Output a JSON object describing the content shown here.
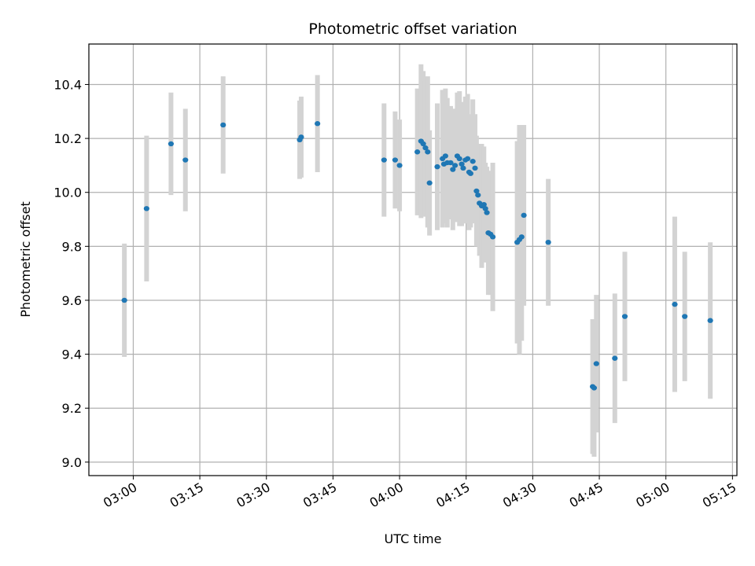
{
  "chart_data": {
    "type": "scatter",
    "title": "Photometric offset variation",
    "xlabel": "UTC time",
    "ylabel": "Photometric offset",
    "x_ticks": [
      "03:00",
      "03:15",
      "03:30",
      "03:45",
      "04:00",
      "04:15",
      "04:30",
      "04:45",
      "05:00",
      "05:15"
    ],
    "y_ticks": [
      "9.0",
      "9.2",
      "9.4",
      "9.6",
      "9.8",
      "10.0",
      "10.2",
      "10.4"
    ],
    "xlim": [
      "02:50",
      "05:16"
    ],
    "ylim": [
      8.95,
      10.55
    ],
    "grid": true,
    "colors": {
      "point": "#1f77b4",
      "errorbar": "#d3d3d3",
      "grid": "#b0b0b0"
    },
    "points": [
      {
        "t": "02:58:00",
        "y": 9.6,
        "err": 0.21
      },
      {
        "t": "03:03:00",
        "y": 9.94,
        "err": 0.27
      },
      {
        "t": "03:08:30",
        "y": 10.18,
        "err": 0.19
      },
      {
        "t": "03:11:45",
        "y": 10.12,
        "err": 0.19
      },
      {
        "t": "03:20:15",
        "y": 10.25,
        "err": 0.18
      },
      {
        "t": "03:37:30",
        "y": 10.195,
        "err": 0.145
      },
      {
        "t": "03:37:50",
        "y": 10.205,
        "err": 0.15
      },
      {
        "t": "03:41:30",
        "y": 10.255,
        "err": 0.18
      },
      {
        "t": "03:56:30",
        "y": 10.12,
        "err": 0.21
      },
      {
        "t": "03:59:00",
        "y": 10.12,
        "err": 0.18
      },
      {
        "t": "04:00:00",
        "y": 10.1,
        "err": 0.17
      },
      {
        "t": "04:04:00",
        "y": 10.15,
        "err": 0.235
      },
      {
        "t": "04:04:50",
        "y": 10.19,
        "err": 0.285
      },
      {
        "t": "04:05:20",
        "y": 10.18,
        "err": 0.27
      },
      {
        "t": "04:05:50",
        "y": 10.165,
        "err": 0.25
      },
      {
        "t": "04:06:20",
        "y": 10.15,
        "err": 0.28
      },
      {
        "t": "04:06:45",
        "y": 10.035,
        "err": 0.195
      },
      {
        "t": "04:08:30",
        "y": 10.095,
        "err": 0.235
      },
      {
        "t": "04:09:40",
        "y": 10.125,
        "err": 0.255
      },
      {
        "t": "04:10:00",
        "y": 10.105,
        "err": 0.22
      },
      {
        "t": "04:10:20",
        "y": 10.135,
        "err": 0.25
      },
      {
        "t": "04:10:45",
        "y": 10.11,
        "err": 0.24
      },
      {
        "t": "04:11:30",
        "y": 10.11,
        "err": 0.21
      },
      {
        "t": "04:12:00",
        "y": 10.085,
        "err": 0.225
      },
      {
        "t": "04:12:30",
        "y": 10.1,
        "err": 0.21
      },
      {
        "t": "04:13:00",
        "y": 10.135,
        "err": 0.235
      },
      {
        "t": "04:13:30",
        "y": 10.125,
        "err": 0.25
      },
      {
        "t": "04:14:00",
        "y": 10.105,
        "err": 0.23
      },
      {
        "t": "04:14:20",
        "y": 10.09,
        "err": 0.205
      },
      {
        "t": "04:14:50",
        "y": 10.12,
        "err": 0.235
      },
      {
        "t": "04:15:20",
        "y": 10.125,
        "err": 0.24
      },
      {
        "t": "04:15:40",
        "y": 10.075,
        "err": 0.215
      },
      {
        "t": "04:16:00",
        "y": 10.07,
        "err": 0.2
      },
      {
        "t": "04:16:30",
        "y": 10.115,
        "err": 0.23
      },
      {
        "t": "04:17:00",
        "y": 10.09,
        "err": 0.2
      },
      {
        "t": "04:17:20",
        "y": 10.005,
        "err": 0.205
      },
      {
        "t": "04:17:40",
        "y": 9.99,
        "err": 0.19
      },
      {
        "t": "04:18:00",
        "y": 9.96,
        "err": 0.195
      },
      {
        "t": "04:18:30",
        "y": 9.95,
        "err": 0.23
      },
      {
        "t": "04:19:00",
        "y": 9.955,
        "err": 0.215
      },
      {
        "t": "04:19:20",
        "y": 9.94,
        "err": 0.17
      },
      {
        "t": "04:19:40",
        "y": 9.925,
        "err": 0.17
      },
      {
        "t": "04:20:00",
        "y": 9.85,
        "err": 0.23
      },
      {
        "t": "04:20:30",
        "y": 9.845,
        "err": 0.225
      },
      {
        "t": "04:21:00",
        "y": 9.835,
        "err": 0.275
      },
      {
        "t": "04:26:30",
        "y": 9.815,
        "err": 0.375
      },
      {
        "t": "04:27:00",
        "y": 9.825,
        "err": 0.425
      },
      {
        "t": "04:27:30",
        "y": 9.835,
        "err": 0.385
      },
      {
        "t": "04:28:00",
        "y": 9.915,
        "err": 0.335
      },
      {
        "t": "04:33:30",
        "y": 9.815,
        "err": 0.235
      },
      {
        "t": "04:43:30",
        "y": 9.28,
        "err": 0.25
      },
      {
        "t": "04:43:50",
        "y": 9.275,
        "err": 0.255
      },
      {
        "t": "04:44:20",
        "y": 9.365,
        "err": 0.255
      },
      {
        "t": "04:48:30",
        "y": 9.385,
        "err": 0.24
      },
      {
        "t": "04:50:45",
        "y": 9.54,
        "err": 0.24
      },
      {
        "t": "05:02:00",
        "y": 9.585,
        "err": 0.325
      },
      {
        "t": "05:04:15",
        "y": 9.54,
        "err": 0.24
      },
      {
        "t": "05:10:00",
        "y": 9.525,
        "err": 0.29
      }
    ]
  }
}
